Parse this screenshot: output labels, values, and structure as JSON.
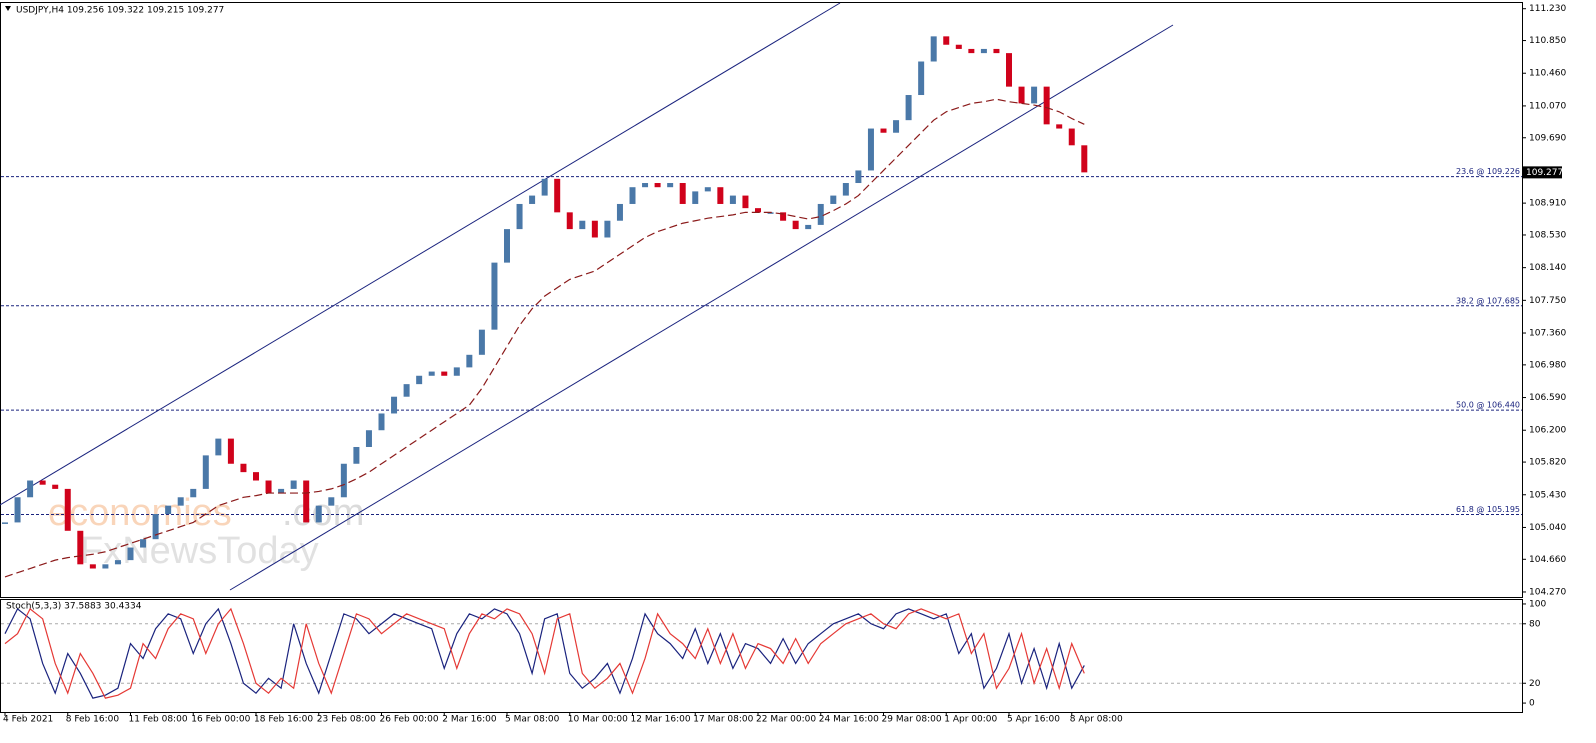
{
  "chart_data": [
    {
      "type": "candlestick",
      "title": "USDJPY,H4  109.256 109.322 109.215 109.277",
      "categories": [
        "4 Feb 2021",
        null,
        null,
        null,
        null,
        "8 Feb 16:00",
        null,
        null,
        null,
        null,
        "11 Feb 08:00",
        null,
        null,
        null,
        null,
        "16 Feb 00:00",
        null,
        null,
        null,
        null,
        "18 Feb 16:00",
        null,
        null,
        null,
        null,
        "23 Feb 08:00",
        null,
        null,
        null,
        null,
        "26 Feb 00:00",
        null,
        null,
        null,
        null,
        "2 Mar 16:00",
        null,
        null,
        null,
        null,
        "5 Mar 08:00",
        null,
        null,
        null,
        null,
        "10 Mar 00:00",
        null,
        null,
        null,
        null,
        "12 Mar 16:00",
        null,
        null,
        null,
        null,
        "17 Mar 08:00",
        null,
        null,
        null,
        null,
        "22 Mar 00:00",
        null,
        null,
        null,
        null,
        "24 Mar 16:00",
        null,
        null,
        null,
        null,
        "29 Mar 08:00",
        null,
        null,
        null,
        null,
        "1 Apr 00:00",
        null,
        null,
        null,
        null,
        "5 Apr 16:00",
        null,
        null,
        null,
        null,
        "8 Apr 08:00",
        null
      ],
      "up_color": "#4a78a8",
      "down_color": "#d0021b",
      "series": [
        {
          "values": [
            105.1,
            105.4,
            105.6,
            105.55,
            105.5,
            105.0,
            104.6,
            104.55,
            104.6,
            104.65,
            104.8,
            104.9,
            105.2,
            105.3,
            105.4,
            105.5,
            105.9,
            106.1,
            105.8,
            105.7,
            105.6,
            105.45,
            105.5,
            105.6,
            105.1,
            105.3,
            105.4,
            105.8,
            106.0,
            106.2,
            106.4,
            106.6,
            106.75,
            106.85,
            106.9,
            106.85,
            106.95,
            107.1,
            107.4,
            108.2,
            108.6,
            108.9,
            109.0,
            109.2,
            108.8,
            108.6,
            108.7,
            108.5,
            108.7,
            108.9,
            109.1,
            109.15,
            109.1,
            109.15,
            108.9,
            109.05,
            109.1,
            108.9,
            109.0,
            108.85,
            108.8,
            108.8,
            108.7,
            108.6,
            108.65,
            108.9,
            109.0,
            109.15,
            109.3,
            109.8,
            109.75,
            109.9,
            110.2,
            110.6,
            110.9,
            110.8,
            110.75,
            110.7,
            110.75,
            110.7,
            110.3,
            110.1,
            110.3,
            109.85,
            109.8,
            109.6,
            109.277
          ]
        },
        {
          "type": "line",
          "color": "#8b1a1a",
          "values": [
            104.45,
            104.5,
            104.55,
            104.6,
            104.65,
            104.68,
            104.7,
            104.72,
            104.75,
            104.8,
            104.85,
            104.9,
            104.95,
            105.0,
            105.05,
            105.1,
            105.2,
            105.3,
            105.35,
            105.4,
            105.42,
            105.45,
            105.45,
            105.45,
            105.45,
            105.47,
            105.5,
            105.55,
            105.62,
            105.7,
            105.8,
            105.9,
            106.0,
            106.1,
            106.2,
            106.3,
            106.4,
            106.5,
            106.7,
            106.95,
            107.2,
            107.45,
            107.65,
            107.8,
            107.9,
            108.0,
            108.05,
            108.1,
            108.2,
            108.3,
            108.4,
            108.5,
            108.57,
            108.62,
            108.67,
            108.7,
            108.73,
            108.75,
            108.77,
            108.8,
            108.8,
            108.8,
            108.78,
            108.75,
            108.72,
            108.75,
            108.82,
            108.9,
            109.0,
            109.15,
            109.3,
            109.45,
            109.6,
            109.75,
            109.9,
            110.0,
            110.05,
            110.1,
            110.12,
            110.15,
            110.12,
            110.1,
            110.08,
            110.05,
            110.0,
            109.92,
            109.85
          ]
        }
      ],
      "ylim": [
        104.21,
        111.31
      ],
      "yticks": [
        {
          "value": 111.23,
          "label": "111.230"
        },
        {
          "value": 110.85,
          "label": "110.850"
        },
        {
          "value": 110.46,
          "label": "110.460"
        },
        {
          "value": 110.07,
          "label": "110.070"
        },
        {
          "value": 109.69,
          "label": "109.690"
        },
        {
          "value": 108.91,
          "label": "108.910"
        },
        {
          "value": 108.53,
          "label": "108.530"
        },
        {
          "value": 108.14,
          "label": "108.140"
        },
        {
          "value": 107.75,
          "label": "107.750"
        },
        {
          "value": 107.36,
          "label": "107.360"
        },
        {
          "value": 106.98,
          "label": "106.980"
        },
        {
          "value": 106.59,
          "label": "106.590"
        },
        {
          "value": 106.2,
          "label": "106.200"
        },
        {
          "value": 105.82,
          "label": "105.820"
        },
        {
          "value": 105.43,
          "label": "105.430"
        },
        {
          "value": 105.04,
          "label": "105.040"
        },
        {
          "value": 104.66,
          "label": "104.660"
        },
        {
          "value": 104.27,
          "label": "104.270"
        }
      ],
      "current_price": 109.277,
      "annotations": [
        {
          "value": 109.226,
          "label": "23.6 @ 109.226"
        },
        {
          "value": 107.685,
          "label": "38.2 @ 107.685"
        },
        {
          "value": 106.44,
          "label": "50.0 @ 106.440"
        },
        {
          "value": 105.195,
          "label": "61.8 @ 105.195"
        }
      ],
      "annotation_color": "#1a237e",
      "watermarks": [
        "economies",
        ".com",
        "FxNewsToday"
      ]
    },
    {
      "type": "line",
      "title": "Stoch(5,3,3) 37.5883 30.4334",
      "series": [
        {
          "color": "#1a237e",
          "values": [
            70,
            95,
            85,
            40,
            10,
            50,
            30,
            5,
            8,
            15,
            60,
            45,
            75,
            90,
            85,
            50,
            80,
            95,
            60,
            20,
            10,
            25,
            15,
            80,
            40,
            10,
            50,
            90,
            85,
            70,
            80,
            90,
            85,
            80,
            75,
            35,
            70,
            90,
            85,
            95,
            90,
            70,
            30,
            85,
            90,
            30,
            15,
            25,
            40,
            10,
            45,
            90,
            70,
            60,
            45,
            75,
            40,
            70,
            35,
            60,
            55,
            40,
            65,
            40,
            60,
            70,
            80,
            85,
            90,
            80,
            75,
            90,
            95,
            90,
            85,
            90,
            50,
            70,
            15,
            35,
            70,
            20,
            55,
            15,
            60,
            15,
            38
          ]
        },
        {
          "color": "#e53935",
          "values": [
            60,
            70,
            95,
            85,
            40,
            10,
            50,
            30,
            5,
            8,
            15,
            60,
            45,
            75,
            90,
            85,
            50,
            80,
            95,
            60,
            20,
            10,
            25,
            15,
            80,
            40,
            10,
            50,
            90,
            85,
            70,
            80,
            90,
            85,
            80,
            75,
            35,
            70,
            90,
            85,
            95,
            90,
            70,
            30,
            85,
            90,
            30,
            15,
            25,
            40,
            10,
            45,
            90,
            70,
            60,
            45,
            75,
            40,
            70,
            35,
            60,
            55,
            40,
            65,
            40,
            60,
            70,
            80,
            85,
            90,
            80,
            75,
            90,
            95,
            90,
            85,
            90,
            50,
            70,
            15,
            35,
            70,
            20,
            55,
            15,
            60,
            30
          ]
        }
      ],
      "ylim": [
        -9,
        105
      ],
      "yticks": [
        0,
        20,
        80,
        100
      ],
      "levels": [
        20,
        80
      ]
    }
  ]
}
